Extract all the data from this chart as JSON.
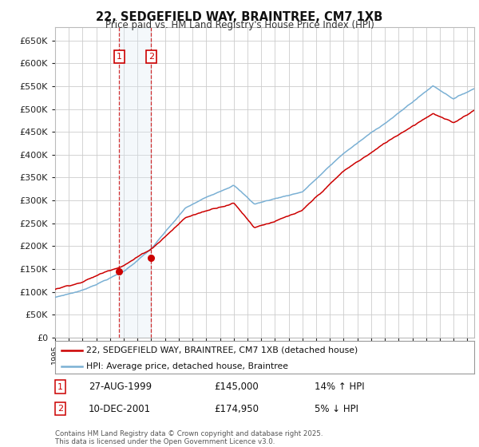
{
  "title": "22, SEDGEFIELD WAY, BRAINTREE, CM7 1XB",
  "subtitle": "Price paid vs. HM Land Registry's House Price Index (HPI)",
  "legend_line1": "22, SEDGEFIELD WAY, BRAINTREE, CM7 1XB (detached house)",
  "legend_line2": "HPI: Average price, detached house, Braintree",
  "footnote": "Contains HM Land Registry data © Crown copyright and database right 2025.\nThis data is licensed under the Open Government Licence v3.0.",
  "transaction1_date": "27-AUG-1999",
  "transaction1_price": "£145,000",
  "transaction1_hpi": "14% ↑ HPI",
  "transaction2_date": "10-DEC-2001",
  "transaction2_price": "£174,950",
  "transaction2_hpi": "5% ↓ HPI",
  "ylim": [
    0,
    680000
  ],
  "yticks": [
    0,
    50000,
    100000,
    150000,
    200000,
    250000,
    300000,
    350000,
    400000,
    450000,
    500000,
    550000,
    600000,
    650000
  ],
  "xlim_start": 1995,
  "xlim_end": 2025.5,
  "color_hpi": "#7ab0d4",
  "color_paid": "#cc0000",
  "color_vline": "#cc0000",
  "color_shade": "#dce9f5",
  "background_color": "#ffffff",
  "grid_color": "#cccccc",
  "t1_year_f": 1999.667,
  "t2_year_f": 2002.0,
  "t1_price": 145000,
  "t2_price": 174950
}
